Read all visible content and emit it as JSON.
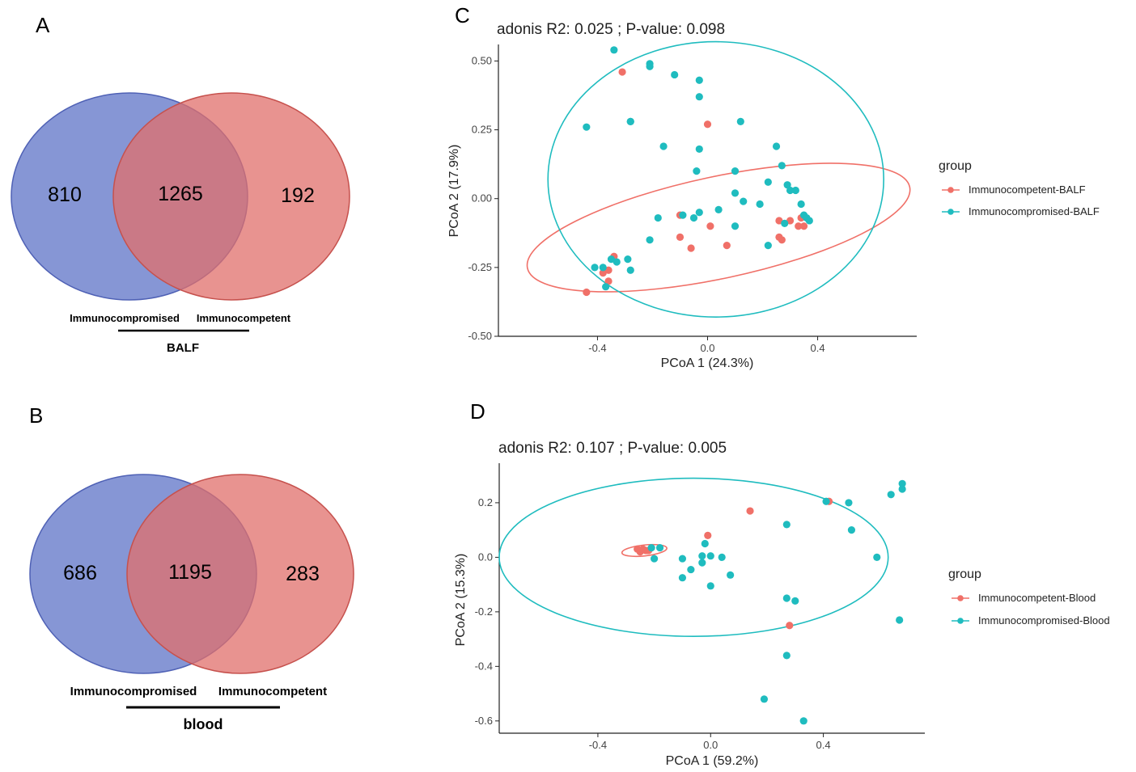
{
  "colors": {
    "immunocompromised_venn": "#6b7fcc",
    "immunocompetent_venn": "#e06f6b",
    "immunocompetent_point": "#f07068",
    "immunocompromised_point": "#1fbcbf"
  },
  "venn": [
    {
      "panel": "A",
      "left_only": "810",
      "shared": "1265",
      "right_only": "192",
      "left_label": "Immunocompromised",
      "right_label": "Immunocompetent",
      "sample": "BALF"
    },
    {
      "panel": "B",
      "left_only": "686",
      "shared": "1195",
      "right_only": "283",
      "left_label": "Immunocompromised",
      "right_label": "Immunocompetent",
      "sample": "blood"
    }
  ],
  "chart_data": [
    {
      "panel": "C",
      "type": "scatter",
      "title": "adonis R2:  0.025 ; P-value:  0.098",
      "xlabel": "PCoA 1 (24.3%)",
      "ylabel": "PCoA 2 (17.9%)",
      "xlim": [
        -0.76,
        0.76
      ],
      "ylim": [
        -0.5,
        0.56
      ],
      "xticks": [
        -0.4,
        0.0,
        0.4
      ],
      "xtick_labels": [
        "-0.4",
        "0.0",
        "0.4"
      ],
      "yticks": [
        -0.5,
        -0.25,
        0.0,
        0.25,
        0.5
      ],
      "ytick_labels": [
        "-0.50",
        "-0.25",
        "0.00",
        "0.25",
        "0.50"
      ],
      "legend_title": "group",
      "series": [
        {
          "name": "Immunocompetent-BALF",
          "color": "#f07068",
          "points": [
            [
              -0.31,
              0.46
            ],
            [
              0.0,
              0.27
            ],
            [
              -0.44,
              -0.34
            ],
            [
              -0.36,
              -0.26
            ],
            [
              -0.38,
              -0.27
            ],
            [
              -0.34,
              -0.21
            ],
            [
              -0.36,
              -0.3
            ],
            [
              -0.1,
              -0.06
            ],
            [
              -0.1,
              -0.14
            ],
            [
              -0.06,
              -0.18
            ],
            [
              0.01,
              -0.1
            ],
            [
              0.07,
              -0.17
            ],
            [
              0.26,
              -0.08
            ],
            [
              0.3,
              -0.08
            ],
            [
              0.33,
              -0.1
            ],
            [
              0.34,
              -0.07
            ],
            [
              0.35,
              -0.1
            ],
            [
              0.26,
              -0.14
            ],
            [
              0.27,
              -0.15
            ]
          ]
        },
        {
          "name": "Immunocompromised-BALF",
          "color": "#1fbcbf",
          "points": [
            [
              -0.34,
              0.54
            ],
            [
              -0.21,
              0.49
            ],
            [
              -0.21,
              0.48
            ],
            [
              -0.12,
              0.45
            ],
            [
              -0.03,
              0.43
            ],
            [
              -0.03,
              0.37
            ],
            [
              -0.44,
              0.26
            ],
            [
              -0.28,
              0.28
            ],
            [
              -0.28,
              0.28
            ],
            [
              0.12,
              0.28
            ],
            [
              -0.16,
              0.19
            ],
            [
              -0.03,
              0.18
            ],
            [
              0.25,
              0.19
            ],
            [
              0.27,
              0.12
            ],
            [
              -0.04,
              0.1
            ],
            [
              0.1,
              0.1
            ],
            [
              0.22,
              0.06
            ],
            [
              0.29,
              0.05
            ],
            [
              0.32,
              0.03
            ],
            [
              0.3,
              0.03
            ],
            [
              0.1,
              0.02
            ],
            [
              0.13,
              -0.01
            ],
            [
              0.19,
              -0.02
            ],
            [
              0.34,
              -0.02
            ],
            [
              -0.05,
              -0.07
            ],
            [
              -0.18,
              -0.07
            ],
            [
              -0.03,
              -0.05
            ],
            [
              0.04,
              -0.04
            ],
            [
              -0.09,
              -0.06
            ],
            [
              0.35,
              -0.06
            ],
            [
              0.36,
              -0.07
            ],
            [
              0.37,
              -0.08
            ],
            [
              0.28,
              -0.09
            ],
            [
              0.1,
              -0.1
            ],
            [
              -0.21,
              -0.15
            ],
            [
              0.22,
              -0.17
            ],
            [
              -0.35,
              -0.22
            ],
            [
              -0.33,
              -0.23
            ],
            [
              -0.29,
              -0.22
            ],
            [
              -0.41,
              -0.25
            ],
            [
              -0.38,
              -0.25
            ],
            [
              -0.28,
              -0.26
            ],
            [
              -0.37,
              -0.32
            ]
          ]
        }
      ],
      "ellipses": [
        {
          "group": "Immunocompetent-BALF",
          "cx": 0.04,
          "cy": -0.105,
          "rx": 0.71,
          "ry": 0.185,
          "angle_deg": -12
        },
        {
          "group": "Immunocompromised-BALF",
          "cx": 0.03,
          "cy": 0.07,
          "rx": 0.61,
          "ry": 0.5,
          "angle_deg": 0
        }
      ]
    },
    {
      "panel": "D",
      "type": "scatter",
      "title": "adonis R2:  0.107 ; P-value:  0.005",
      "xlabel": "PCoA 1 (59.2%)",
      "ylabel": "PCoA 2 (15.3%)",
      "xlim": [
        -0.75,
        0.76
      ],
      "ylim": [
        -0.645,
        0.345
      ],
      "xticks": [
        -0.4,
        0.0,
        0.4
      ],
      "xtick_labels": [
        "-0.4",
        "0.0",
        "0.4"
      ],
      "yticks": [
        -0.6,
        -0.4,
        -0.2,
        0.0,
        0.2
      ],
      "ytick_labels": [
        "-0.6",
        "-0.4",
        "-0.2",
        "0.0",
        "0.2"
      ],
      "legend_title": "group",
      "series": [
        {
          "name": "Immunocompetent-Blood",
          "color": "#f07068",
          "points": [
            [
              -0.26,
              0.03
            ],
            [
              -0.24,
              0.03
            ],
            [
              -0.22,
              0.025
            ],
            [
              -0.25,
              0.02
            ],
            [
              -0.23,
              0.025
            ],
            [
              -0.01,
              0.08
            ],
            [
              0.14,
              0.17
            ],
            [
              0.42,
              0.205
            ],
            [
              0.28,
              -0.25
            ]
          ]
        },
        {
          "name": "Immunocompromised-Blood",
          "color": "#1fbcbf",
          "points": [
            [
              -0.21,
              0.035
            ],
            [
              -0.18,
              0.035
            ],
            [
              -0.2,
              -0.005
            ],
            [
              -0.1,
              -0.005
            ],
            [
              -0.07,
              -0.045
            ],
            [
              -0.03,
              0.005
            ],
            [
              0.0,
              0.005
            ],
            [
              0.04,
              0.0
            ],
            [
              -0.02,
              0.05
            ],
            [
              -0.03,
              -0.02
            ],
            [
              -0.1,
              -0.075
            ],
            [
              0.0,
              -0.105
            ],
            [
              0.07,
              -0.065
            ],
            [
              0.27,
              0.12
            ],
            [
              0.41,
              0.205
            ],
            [
              0.49,
              0.2
            ],
            [
              0.5,
              0.1
            ],
            [
              0.59,
              0.0
            ],
            [
              0.64,
              0.23
            ],
            [
              0.68,
              0.27
            ],
            [
              0.68,
              0.25
            ],
            [
              0.67,
              -0.23
            ],
            [
              0.27,
              -0.15
            ],
            [
              0.3,
              -0.16
            ],
            [
              0.27,
              -0.36
            ],
            [
              0.19,
              -0.52
            ],
            [
              0.33,
              -0.6
            ]
          ]
        }
      ],
      "ellipses": [
        {
          "group": "Immunocompetent-Blood",
          "cx": -0.235,
          "cy": 0.025,
          "rx": 0.08,
          "ry": 0.02,
          "angle_deg": -6
        },
        {
          "group": "Immunocompromised-Blood",
          "cx": -0.06,
          "cy": 0.0,
          "rx": 0.69,
          "ry": 0.29,
          "angle_deg": 0
        }
      ]
    }
  ]
}
